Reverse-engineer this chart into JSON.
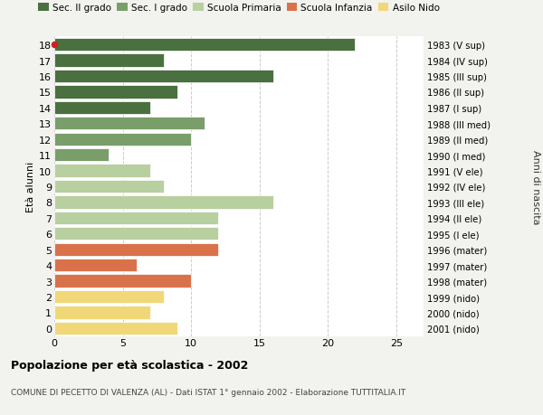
{
  "ages": [
    18,
    17,
    16,
    15,
    14,
    13,
    12,
    11,
    10,
    9,
    8,
    7,
    6,
    5,
    4,
    3,
    2,
    1,
    0
  ],
  "values": [
    22,
    8,
    16,
    9,
    7,
    11,
    10,
    4,
    7,
    8,
    16,
    12,
    12,
    12,
    6,
    10,
    8,
    7,
    9
  ],
  "right_labels": [
    "1983 (V sup)",
    "1984 (IV sup)",
    "1985 (III sup)",
    "1986 (II sup)",
    "1987 (I sup)",
    "1988 (III med)",
    "1989 (II med)",
    "1990 (I med)",
    "1991 (V ele)",
    "1992 (IV ele)",
    "1993 (III ele)",
    "1994 (II ele)",
    "1995 (I ele)",
    "1996 (mater)",
    "1997 (mater)",
    "1998 (mater)",
    "1999 (nido)",
    "2000 (nido)",
    "2001 (nido)"
  ],
  "colors": [
    "#4a7040",
    "#4a7040",
    "#4a7040",
    "#4a7040",
    "#4a7040",
    "#7a9e6a",
    "#7a9e6a",
    "#7a9e6a",
    "#b8cfa0",
    "#b8cfa0",
    "#b8cfa0",
    "#b8cfa0",
    "#b8cfa0",
    "#d9724a",
    "#d9724a",
    "#d9724a",
    "#f0d878",
    "#f0d878",
    "#f0d878"
  ],
  "legend_labels": [
    "Sec. II grado",
    "Sec. I grado",
    "Scuola Primaria",
    "Scuola Infanzia",
    "Asilo Nido"
  ],
  "legend_colors": [
    "#4a7040",
    "#7a9e6a",
    "#b8cfa0",
    "#d9724a",
    "#f0d878"
  ],
  "title": "Popolazione per età scolastica - 2002",
  "subtitle": "COMUNE DI PECETTO DI VALENZA (AL) - Dati ISTAT 1° gennaio 2002 - Elaborazione TUTTITALIA.IT",
  "ylabel_left": "Età alunni",
  "ylabel_right": "Anni di nascita",
  "xlim": [
    0,
    27
  ],
  "xticks": [
    0,
    5,
    10,
    15,
    20,
    25
  ],
  "bg_color": "#f2f2ee",
  "bar_bg_color": "#ffffff",
  "grid_color": "#cccccc"
}
